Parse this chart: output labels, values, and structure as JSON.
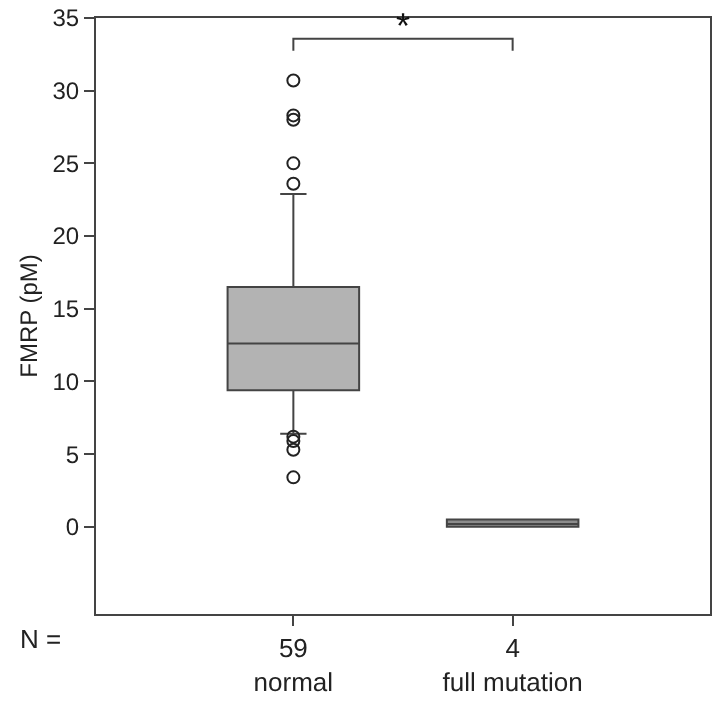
{
  "chart_data": {
    "type": "box",
    "ylabel": "FMRP (pM)",
    "categories": [
      "59\nnormal",
      "4\nfull mutation"
    ],
    "colors": [
      "#b3b3b3",
      "#8c8c8c"
    ],
    "boxes": [
      {
        "low": 6.4,
        "q1": 9.4,
        "median": 12.6,
        "q3": 16.5,
        "high": 22.9,
        "outliers": [
          30.7,
          28.3,
          28.0,
          25.0,
          23.6,
          6.2,
          5.9,
          5.3,
          3.4
        ]
      },
      {
        "low": 0.0,
        "q1": 0.0,
        "median": 0.2,
        "q3": 0.5,
        "high": 0.5
      }
    ],
    "ylim": [
      -6,
      35
    ],
    "yticks": [
      0,
      5,
      10,
      15,
      20,
      25,
      30,
      35
    ],
    "annotations": [
      "N =",
      "*"
    ]
  }
}
